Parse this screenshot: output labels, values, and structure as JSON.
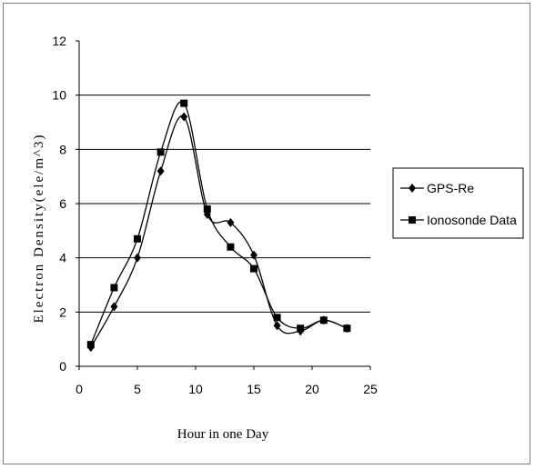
{
  "chart_data": {
    "type": "line",
    "title": "",
    "xlabel": "Hour in one Day",
    "ylabel": "Electron Density(ele/m^3)",
    "xlim": [
      0,
      25
    ],
    "ylim": [
      0,
      12
    ],
    "x_ticks": [
      "0",
      "5",
      "10",
      "15",
      "20",
      "25"
    ],
    "y_ticks": [
      "0",
      "2",
      "4",
      "6",
      "8",
      "10",
      "12"
    ],
    "grid": "horizontal",
    "legend_position": "right",
    "series": [
      {
        "name": "GPS-Re",
        "marker": "diamond",
        "color": "#000000",
        "x": [
          1,
          3,
          5,
          7,
          9,
          11,
          13,
          15,
          17,
          19,
          21,
          23
        ],
        "values": [
          0.7,
          2.2,
          4.0,
          7.2,
          9.2,
          5.6,
          5.3,
          4.1,
          1.5,
          1.3,
          1.7,
          1.4
        ]
      },
      {
        "name": "Ionosonde Data",
        "marker": "square",
        "color": "#000000",
        "x": [
          1,
          3,
          5,
          7,
          9,
          11,
          13,
          15,
          17,
          19,
          21,
          23
        ],
        "values": [
          0.8,
          2.9,
          4.7,
          7.9,
          9.7,
          5.8,
          4.4,
          3.6,
          1.8,
          1.4,
          1.7,
          1.4
        ]
      }
    ]
  }
}
